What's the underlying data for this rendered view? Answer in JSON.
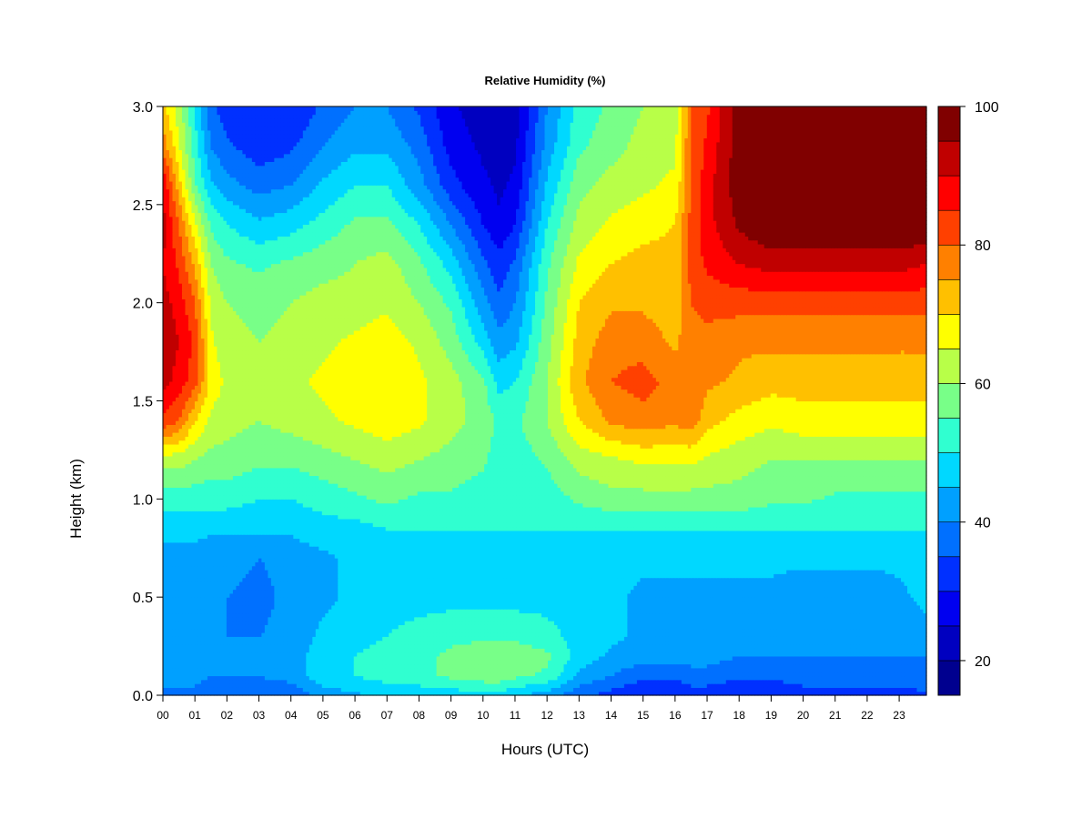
{
  "chart_data": {
    "type": "heatmap",
    "title": "Relative Humidity (%)",
    "xlabel": "Hours (UTC)",
    "ylabel": "Height (km)",
    "xlim": [
      0,
      23.85
    ],
    "ylim": [
      0,
      3.0
    ],
    "x_ticks": [
      "00",
      "01",
      "02",
      "03",
      "04",
      "05",
      "06",
      "07",
      "08",
      "09",
      "10",
      "11",
      "12",
      "13",
      "14",
      "15",
      "16",
      "17",
      "18",
      "19",
      "20",
      "21",
      "22",
      "23"
    ],
    "y_ticks": [
      "0.0",
      "0.5",
      "1.0",
      "1.5",
      "2.0",
      "2.5",
      "3.0"
    ],
    "colorbar": {
      "min": 15,
      "max": 100,
      "step": 5,
      "tick_labels": [
        "20",
        "40",
        "60",
        "80",
        "100"
      ],
      "colors": [
        "#00008F",
        "#0000C0",
        "#0000F0",
        "#0030FF",
        "#0070FF",
        "#00A0FF",
        "#00D8FF",
        "#30FFD0",
        "#78FF88",
        "#B8FF48",
        "#FFFF00",
        "#FFC000",
        "#FF8000",
        "#FF4000",
        "#FF0000",
        "#C00000",
        "#800000"
      ]
    },
    "height_levels_km": [
      0.0,
      0.1,
      0.2,
      0.3,
      0.5,
      0.7,
      0.85,
      1.0,
      1.2,
      1.4,
      1.6,
      1.8,
      2.0,
      2.2,
      2.4,
      2.6,
      2.8,
      3.0
    ],
    "hours_utc": [
      0,
      0.5,
      1,
      1.5,
      2,
      3,
      4,
      5,
      6,
      7,
      8,
      9,
      10,
      10.5,
      11,
      12,
      13,
      14,
      15,
      16,
      16.5,
      17,
      18,
      19,
      20,
      21,
      22,
      23,
      23.85
    ],
    "rh_percent": [
      [
        38,
        38,
        38,
        36,
        36,
        36,
        36,
        42,
        44,
        46,
        46,
        47,
        48,
        48,
        46,
        42,
        36,
        33,
        30,
        30,
        32,
        32,
        30,
        30,
        32,
        32,
        32,
        32,
        34
      ],
      [
        42,
        42,
        42,
        40,
        40,
        40,
        42,
        48,
        50,
        52,
        54,
        56,
        58,
        58,
        56,
        54,
        44,
        40,
        36,
        36,
        38,
        38,
        36,
        36,
        38,
        38,
        38,
        38,
        40
      ],
      [
        42,
        42,
        42,
        40,
        40,
        40,
        42,
        48,
        50,
        52,
        54,
        56,
        58,
        58,
        58,
        56,
        48,
        44,
        42,
        42,
        42,
        42,
        40,
        40,
        40,
        40,
        40,
        40,
        40
      ],
      [
        42,
        42,
        42,
        40,
        40,
        40,
        42,
        46,
        48,
        50,
        52,
        54,
        54,
        54,
        54,
        52,
        48,
        46,
        44,
        44,
        44,
        44,
        42,
        42,
        42,
        42,
        42,
        42,
        44
      ],
      [
        44,
        44,
        44,
        42,
        40,
        38,
        42,
        44,
        46,
        48,
        48,
        48,
        48,
        48,
        48,
        48,
        46,
        46,
        44,
        44,
        44,
        44,
        44,
        44,
        42,
        42,
        42,
        44,
        46
      ],
      [
        44,
        44,
        44,
        42,
        42,
        40,
        42,
        44,
        46,
        46,
        48,
        48,
        48,
        48,
        48,
        48,
        48,
        48,
        46,
        46,
        46,
        46,
        46,
        46,
        46,
        46,
        46,
        46,
        48
      ],
      [
        46,
        46,
        46,
        46,
        46,
        46,
        46,
        48,
        48,
        50,
        50,
        50,
        50,
        50,
        50,
        50,
        50,
        50,
        50,
        50,
        50,
        50,
        50,
        50,
        50,
        50,
        50,
        50,
        50
      ],
      [
        52,
        52,
        52,
        52,
        52,
        50,
        50,
        52,
        54,
        56,
        54,
        54,
        52,
        50,
        50,
        52,
        56,
        58,
        58,
        58,
        58,
        58,
        58,
        56,
        56,
        54,
        54,
        54,
        54
      ],
      [
        62,
        62,
        60,
        58,
        58,
        56,
        56,
        58,
        60,
        62,
        60,
        58,
        56,
        52,
        52,
        56,
        62,
        64,
        66,
        66,
        66,
        64,
        62,
        60,
        60,
        60,
        60,
        60,
        60
      ],
      [
        84,
        80,
        70,
        64,
        62,
        60,
        62,
        64,
        66,
        68,
        66,
        62,
        58,
        54,
        54,
        60,
        70,
        76,
        78,
        76,
        78,
        72,
        68,
        66,
        68,
        68,
        68,
        68,
        68
      ],
      [
        92,
        88,
        82,
        68,
        64,
        62,
        64,
        66,
        68,
        70,
        66,
        62,
        56,
        48,
        50,
        60,
        74,
        80,
        82,
        78,
        80,
        76,
        74,
        72,
        72,
        72,
        72,
        72,
        72
      ],
      [
        94,
        90,
        84,
        66,
        62,
        60,
        62,
        64,
        66,
        68,
        64,
        58,
        48,
        42,
        44,
        58,
        72,
        78,
        78,
        74,
        78,
        78,
        76,
        76,
        76,
        76,
        76,
        76,
        76
      ],
      [
        92,
        88,
        80,
        64,
        60,
        58,
        60,
        62,
        62,
        64,
        60,
        54,
        42,
        36,
        40,
        56,
        70,
        74,
        74,
        72,
        80,
        82,
        82,
        82,
        82,
        82,
        82,
        82,
        82
      ],
      [
        90,
        84,
        74,
        60,
        56,
        54,
        56,
        58,
        60,
        62,
        56,
        48,
        36,
        32,
        36,
        54,
        66,
        70,
        72,
        72,
        82,
        86,
        90,
        92,
        92,
        92,
        92,
        92,
        90
      ],
      [
        92,
        80,
        66,
        54,
        50,
        46,
        48,
        52,
        56,
        56,
        50,
        40,
        30,
        26,
        30,
        50,
        62,
        66,
        68,
        70,
        82,
        88,
        96,
        100,
        100,
        100,
        100,
        100,
        100
      ],
      [
        90,
        72,
        56,
        46,
        42,
        38,
        40,
        46,
        50,
        50,
        42,
        32,
        26,
        24,
        26,
        46,
        58,
        62,
        64,
        66,
        80,
        88,
        98,
        100,
        100,
        100,
        100,
        100,
        100
      ],
      [
        78,
        66,
        52,
        40,
        36,
        32,
        34,
        40,
        44,
        44,
        38,
        28,
        24,
        24,
        24,
        42,
        54,
        58,
        62,
        64,
        80,
        86,
        98,
        100,
        100,
        100,
        100,
        100,
        100
      ],
      [
        72,
        62,
        50,
        36,
        32,
        30,
        30,
        36,
        40,
        40,
        34,
        26,
        22,
        22,
        22,
        40,
        52,
        56,
        60,
        62,
        80,
        84,
        98,
        100,
        100,
        100,
        100,
        100,
        100
      ]
    ]
  }
}
